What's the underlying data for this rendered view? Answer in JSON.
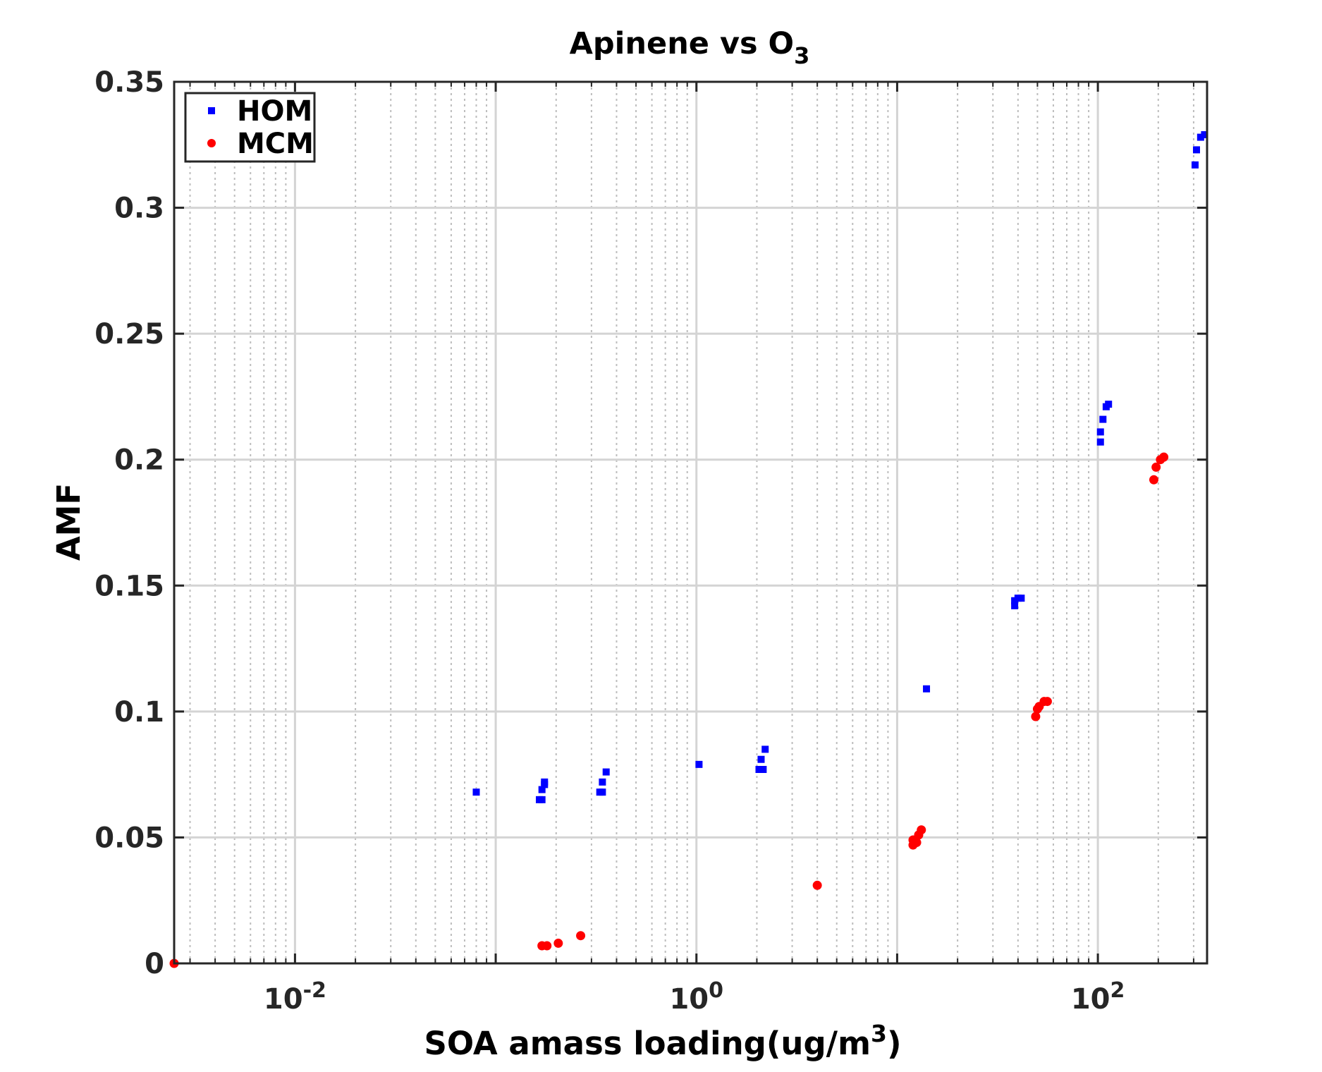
{
  "chart_data": {
    "type": "scatter",
    "title": "Apinene vs O",
    "title_subscript": "3",
    "xlabel": "SOA amass loading(ug/m",
    "xlabel_superscript": "3",
    "xlabel_suffix": ")",
    "ylabel": "AMF",
    "x_scale": "log",
    "xlim": [
      0.0025,
      350
    ],
    "ylim": [
      0,
      0.35
    ],
    "x_ticks": [
      {
        "value": 0.01,
        "base": "10",
        "exp": "-2"
      },
      {
        "value": 1,
        "base": "10",
        "exp": "0"
      },
      {
        "value": 100,
        "base": "10",
        "exp": "2"
      }
    ],
    "y_ticks": [
      {
        "value": 0,
        "label": "0"
      },
      {
        "value": 0.05,
        "label": "0.05"
      },
      {
        "value": 0.1,
        "label": "0.1"
      },
      {
        "value": 0.15,
        "label": "0.15"
      },
      {
        "value": 0.2,
        "label": "0.2"
      },
      {
        "value": 0.25,
        "label": "0.25"
      },
      {
        "value": 0.3,
        "label": "0.3"
      },
      {
        "value": 0.35,
        "label": "0.35"
      }
    ],
    "grid": true,
    "legend_position": "top-left",
    "series": [
      {
        "name": "HOM",
        "marker": "square",
        "color": "#0000ff",
        "points": [
          {
            "x": 0.08,
            "y": 0.068
          },
          {
            "x": 0.165,
            "y": 0.065
          },
          {
            "x": 0.17,
            "y": 0.065
          },
          {
            "x": 0.17,
            "y": 0.069
          },
          {
            "x": 0.175,
            "y": 0.071
          },
          {
            "x": 0.175,
            "y": 0.072
          },
          {
            "x": 0.33,
            "y": 0.068
          },
          {
            "x": 0.34,
            "y": 0.068
          },
          {
            "x": 0.34,
            "y": 0.072
          },
          {
            "x": 0.355,
            "y": 0.076
          },
          {
            "x": 1.03,
            "y": 0.079
          },
          {
            "x": 2.05,
            "y": 0.077
          },
          {
            "x": 2.1,
            "y": 0.081
          },
          {
            "x": 2.15,
            "y": 0.077
          },
          {
            "x": 2.2,
            "y": 0.085
          },
          {
            "x": 14.0,
            "y": 0.109
          },
          {
            "x": 38.5,
            "y": 0.142
          },
          {
            "x": 38.5,
            "y": 0.144
          },
          {
            "x": 40,
            "y": 0.145
          },
          {
            "x": 41.5,
            "y": 0.145
          },
          {
            "x": 103,
            "y": 0.207
          },
          {
            "x": 103,
            "y": 0.211
          },
          {
            "x": 106,
            "y": 0.216
          },
          {
            "x": 110,
            "y": 0.221
          },
          {
            "x": 113,
            "y": 0.222
          },
          {
            "x": 305,
            "y": 0.317
          },
          {
            "x": 310,
            "y": 0.323
          },
          {
            "x": 325,
            "y": 0.328
          },
          {
            "x": 340,
            "y": 0.329
          }
        ]
      },
      {
        "name": "MCM",
        "marker": "circle",
        "color": "#ff0000",
        "points": [
          {
            "x": 0.0025,
            "y": 0.0
          },
          {
            "x": 0.17,
            "y": 0.007
          },
          {
            "x": 0.18,
            "y": 0.007
          },
          {
            "x": 0.205,
            "y": 0.008
          },
          {
            "x": 0.265,
            "y": 0.011
          },
          {
            "x": 4.0,
            "y": 0.031
          },
          {
            "x": 12.0,
            "y": 0.047
          },
          {
            "x": 12.0,
            "y": 0.049
          },
          {
            "x": 12.5,
            "y": 0.048
          },
          {
            "x": 12.8,
            "y": 0.051
          },
          {
            "x": 13.2,
            "y": 0.053
          },
          {
            "x": 49,
            "y": 0.098
          },
          {
            "x": 50,
            "y": 0.101
          },
          {
            "x": 51,
            "y": 0.102
          },
          {
            "x": 54,
            "y": 0.104
          },
          {
            "x": 56,
            "y": 0.104
          },
          {
            "x": 190,
            "y": 0.192
          },
          {
            "x": 195,
            "y": 0.197
          },
          {
            "x": 205,
            "y": 0.2
          },
          {
            "x": 213,
            "y": 0.201
          }
        ]
      }
    ]
  }
}
